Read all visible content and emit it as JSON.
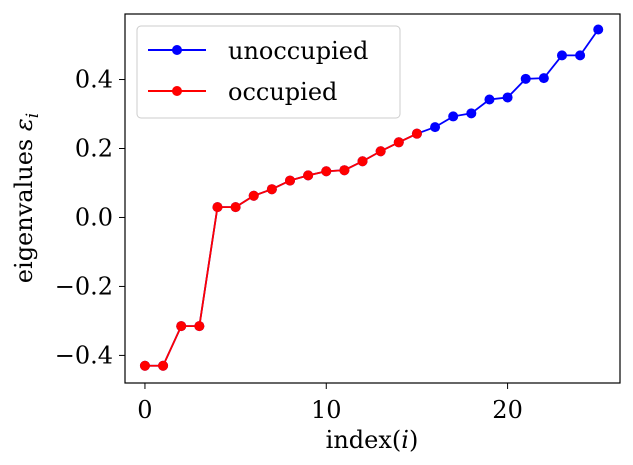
{
  "chart_data": {
    "type": "line",
    "xlabel": "index(",
    "xlabel_var": "i",
    "xlabel_close": ")",
    "ylabel": "eigenvalues ",
    "ylabel_var": "ε",
    "ylabel_sub": "i",
    "xlim": [
      -1.1,
      26.2
    ],
    "ylim": [
      -0.48,
      0.59
    ],
    "xticks": [
      0,
      10,
      20
    ],
    "xtick_labels": [
      "0",
      "10",
      "20"
    ],
    "yticks": [
      -0.4,
      -0.2,
      0.0,
      0.2,
      0.4
    ],
    "ytick_labels": [
      "−0.4",
      "−0.2",
      "0.0",
      "0.2",
      "0.4"
    ],
    "legend_position": "upper-left",
    "series": [
      {
        "name": "unoccupied",
        "color": "#0000ff",
        "x": [
          0,
          1,
          2,
          3,
          4,
          5,
          6,
          7,
          8,
          9,
          10,
          11,
          12,
          13,
          14,
          15,
          16,
          17,
          18,
          19,
          20,
          21,
          22,
          23,
          24,
          25
        ],
        "y": [
          -0.43,
          -0.43,
          -0.315,
          -0.315,
          0.03,
          0.03,
          0.063,
          0.082,
          0.107,
          0.122,
          0.134,
          0.137,
          0.163,
          0.192,
          0.218,
          0.243,
          0.262,
          0.293,
          0.302,
          0.342,
          0.348,
          0.402,
          0.404,
          0.47,
          0.47,
          0.545
        ]
      },
      {
        "name": "occupied",
        "color": "#ff0000",
        "x": [
          0,
          1,
          2,
          3,
          4,
          5,
          6,
          7,
          8,
          9,
          10,
          11,
          12,
          13,
          14,
          15
        ],
        "y": [
          -0.43,
          -0.43,
          -0.315,
          -0.315,
          0.03,
          0.03,
          0.063,
          0.082,
          0.107,
          0.122,
          0.134,
          0.137,
          0.163,
          0.192,
          0.218,
          0.243
        ]
      }
    ]
  }
}
